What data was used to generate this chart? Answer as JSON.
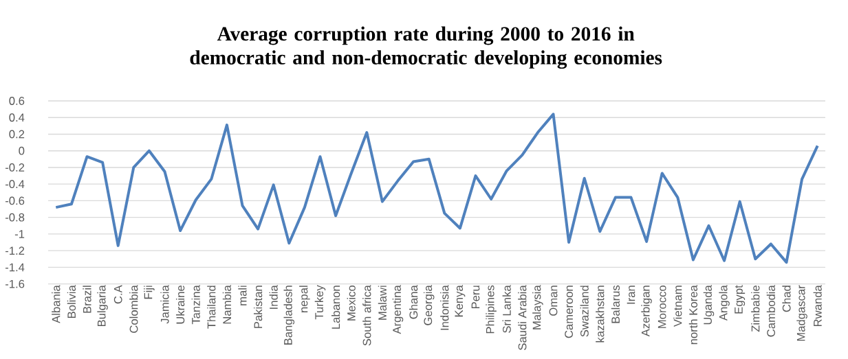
{
  "chart_data": {
    "type": "line",
    "title": "Average corruption rate during 2000 to 2016 in democratic and non-democratic developing economies",
    "categories": [
      "Albania",
      "Bolivia",
      "Brazil",
      "Bulgaria",
      "C.A",
      "Colombia",
      "Fiji",
      "Jamicia",
      "Ukraine",
      "Tanzina",
      "Thailand",
      "Nambia",
      "mali",
      "Pakistan",
      "India",
      "Bangladesh",
      "nepal",
      "Turkey",
      "Labanon",
      "Mexico",
      "South africa",
      "Malawi",
      "Argentina",
      "Ghana",
      "Georgia",
      "Indonisia",
      "Kenya",
      "Peru",
      "Philipines",
      "Sri Lanka",
      "Saudi Arabia",
      "Malaysia",
      "Oman",
      "Cameroon",
      "Swaziland",
      "kazakhstan",
      "Balarus",
      "Iran",
      "Azerbigan",
      "Morocco",
      "Vietnam",
      "north Korea",
      "Uganda",
      "Angola",
      "Egypt",
      "Zimbabie",
      "Cambodia",
      "Chad",
      "Madgascar",
      "Rwanda"
    ],
    "values": [
      -0.68,
      -0.64,
      -0.07,
      -0.14,
      -1.14,
      -0.2,
      0.0,
      -0.25,
      -0.96,
      -0.59,
      -0.34,
      0.31,
      -0.66,
      -0.94,
      -0.41,
      -1.11,
      -0.68,
      -0.07,
      -0.78,
      -0.27,
      0.22,
      -0.61,
      -0.36,
      -0.13,
      -0.1,
      -0.75,
      -0.93,
      -0.3,
      -0.58,
      -0.24,
      -0.05,
      0.22,
      0.44,
      -1.1,
      -0.33,
      -0.97,
      -0.56,
      -0.56,
      -1.09,
      -0.27,
      -0.56,
      -1.31,
      -0.9,
      -1.32,
      -0.61,
      -1.3,
      -1.12,
      -1.34,
      -0.34,
      0.06
    ],
    "color": "#4f81bd",
    "ylim": [
      -1.6,
      0.6
    ],
    "yticks": [
      -1.6,
      -1.4,
      -1.2,
      -1,
      -0.8,
      -0.6,
      -0.4,
      -0.2,
      0,
      0.2,
      0.4,
      0.6
    ],
    "grid": "y",
    "marker": "none",
    "line_style": "solid"
  }
}
